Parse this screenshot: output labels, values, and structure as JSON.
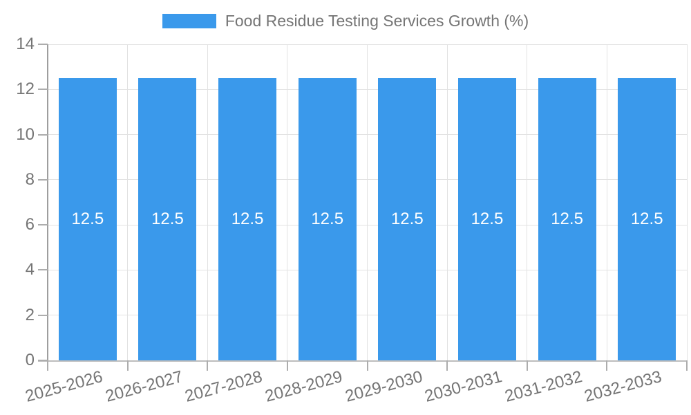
{
  "chart_data": {
    "type": "bar",
    "title": "Food Residue Testing Services Growth (%)",
    "xlabel": "",
    "ylabel": "",
    "categories": [
      "2025-2026",
      "2026-2027",
      "2027-2028",
      "2028-2029",
      "2029-2030",
      "2030-2031",
      "2031-2032",
      "2032-2033"
    ],
    "series": [
      {
        "name": "Food Residue Testing Services Growth (%)",
        "values": [
          12.5,
          12.5,
          12.5,
          12.5,
          12.5,
          12.5,
          12.5,
          12.5
        ]
      }
    ],
    "bar_value_labels": [
      "12.5",
      "12.5",
      "12.5",
      "12.5",
      "12.5",
      "12.5",
      "12.5",
      "12.5"
    ],
    "ylim": [
      0,
      14
    ],
    "yticks": [
      0,
      2,
      4,
      6,
      8,
      10,
      12,
      14
    ],
    "grid": true,
    "legend_position": "top-center"
  },
  "legend": {
    "label": "Food Residue Testing Services Growth (%)"
  },
  "colors": {
    "bar": "#3A99EB",
    "bar_value_label": "#FFFFFF",
    "legend_text": "#757575",
    "tick_label": "#757575",
    "gridline": "#E2E2E2",
    "y_axis_line": "#9E9E9E",
    "x_axis_line": "#BDBDBD",
    "tick_mark": "#ADADAD"
  }
}
